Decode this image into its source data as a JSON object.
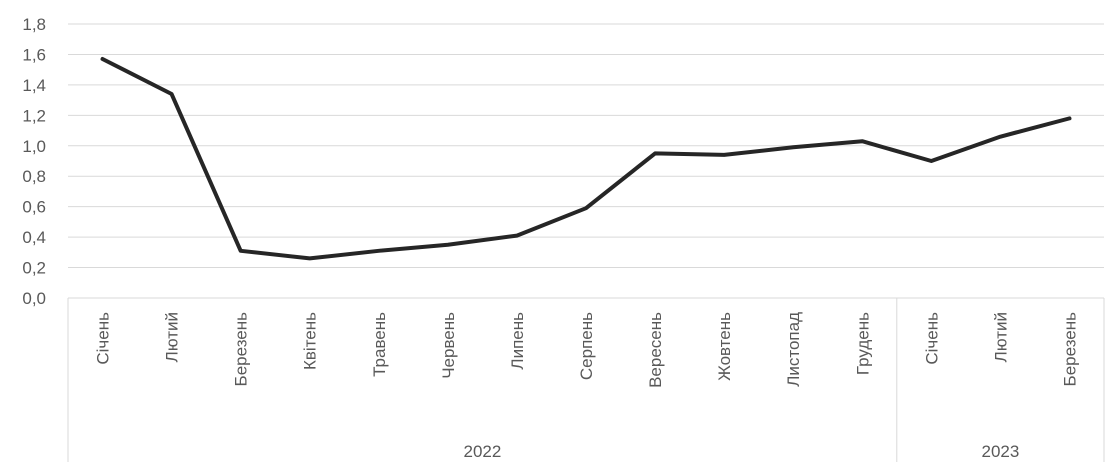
{
  "chart_data": {
    "type": "line",
    "x": [
      "Січень",
      "Лютий",
      "Березень",
      "Квітень",
      "Травень",
      "Червень",
      "Липень",
      "Серпень",
      "Вересень",
      "Жовтень",
      "Листопад",
      "Грудень",
      "Січень",
      "Лютий",
      "Березень"
    ],
    "groups": [
      {
        "label": "2022",
        "count": 12
      },
      {
        "label": "2023",
        "count": 3
      }
    ],
    "series": [
      {
        "values": [
          1.57,
          1.34,
          0.31,
          0.26,
          0.31,
          0.35,
          0.41,
          0.59,
          0.95,
          0.94,
          0.99,
          1.03,
          0.9,
          1.06,
          1.18
        ]
      }
    ],
    "ylim": [
      0,
      1.8
    ],
    "yticks": [
      "0,0",
      "0,2",
      "0,4",
      "0,6",
      "0,8",
      "1,0",
      "1,2",
      "1,4",
      "1,6",
      "1,8"
    ],
    "grid": true,
    "line_color": "#262626",
    "grid_color": "#d9d9d9"
  }
}
